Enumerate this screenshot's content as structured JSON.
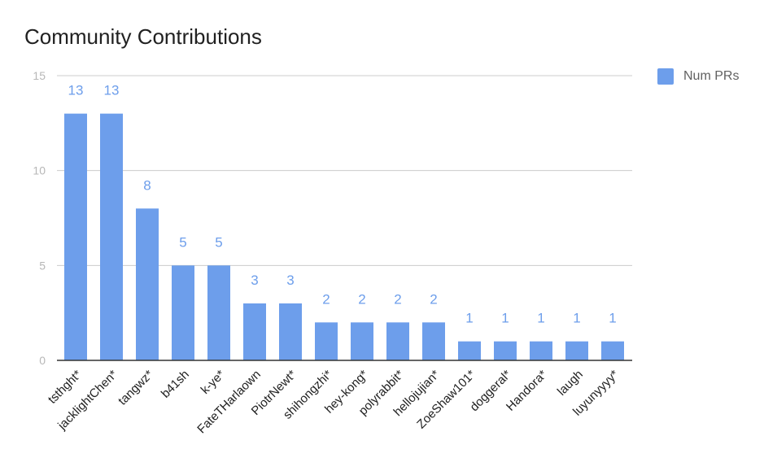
{
  "chart_data": {
    "type": "bar",
    "title": "Community Contributions",
    "xlabel": "",
    "ylabel": "",
    "ylim": [
      0,
      15
    ],
    "yticks": [
      0,
      5,
      10,
      15
    ],
    "grid": true,
    "legend_position": "top-right",
    "categories": [
      "tsthght*",
      "jacklightChen*",
      "tangwz*",
      "b41sh",
      "k-ye*",
      "FateTHarlaown",
      "PiotrNewt*",
      "shihongzhi*",
      "hey-kong*",
      "polyrabbit*",
      "hellojujian*",
      "ZoeShaw101*",
      "doggeral*",
      "Handora*",
      "laugh",
      "luyunyyyy*"
    ],
    "series": [
      {
        "name": "Num PRs",
        "values": [
          13,
          13,
          8,
          5,
          5,
          3,
          3,
          2,
          2,
          2,
          2,
          1,
          1,
          1,
          1,
          1
        ]
      }
    ]
  },
  "colors": {
    "bar": "#6d9eeb",
    "data_label": "#6d9eeb",
    "grid": "#cccccc",
    "axis": "#333333",
    "tick_label": "#b7b7b7",
    "category_label": "#212121"
  }
}
